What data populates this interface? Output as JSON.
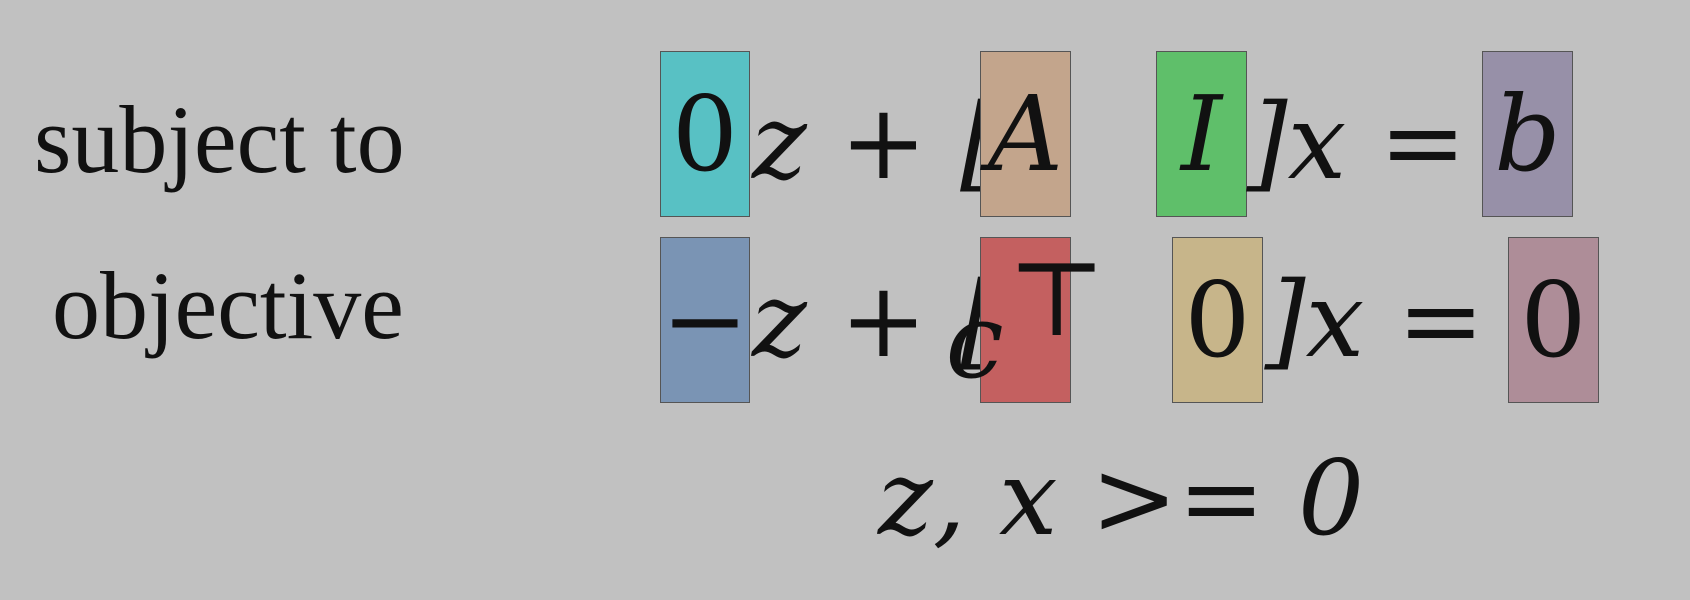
{
  "labels": {
    "constraint": "subject to",
    "objective": "objective"
  },
  "row1": {
    "coef_z": "0",
    "z_plus_bracket": "z + [",
    "A": "A",
    "I": "I",
    "close_x_eq": "]x =",
    "rhs": "b"
  },
  "row2": {
    "coef_z": "−",
    "z_plus_bracket": "z + [",
    "c": "c",
    "transpose": "⊤",
    "zero": "0",
    "close_x_eq": "]x =",
    "rhs": "0"
  },
  "nonnegativity": "z, x >= 0",
  "colors": {
    "background": "#c1c1c1",
    "cyan": "#58c1c4",
    "tan": "#c3a58c",
    "green": "#5fbf6a",
    "lavender": "#9790a8",
    "steel_blue": "#7a94b4",
    "red": "#c46060",
    "khaki": "#c7b58a",
    "mauve": "#ae8d98"
  }
}
